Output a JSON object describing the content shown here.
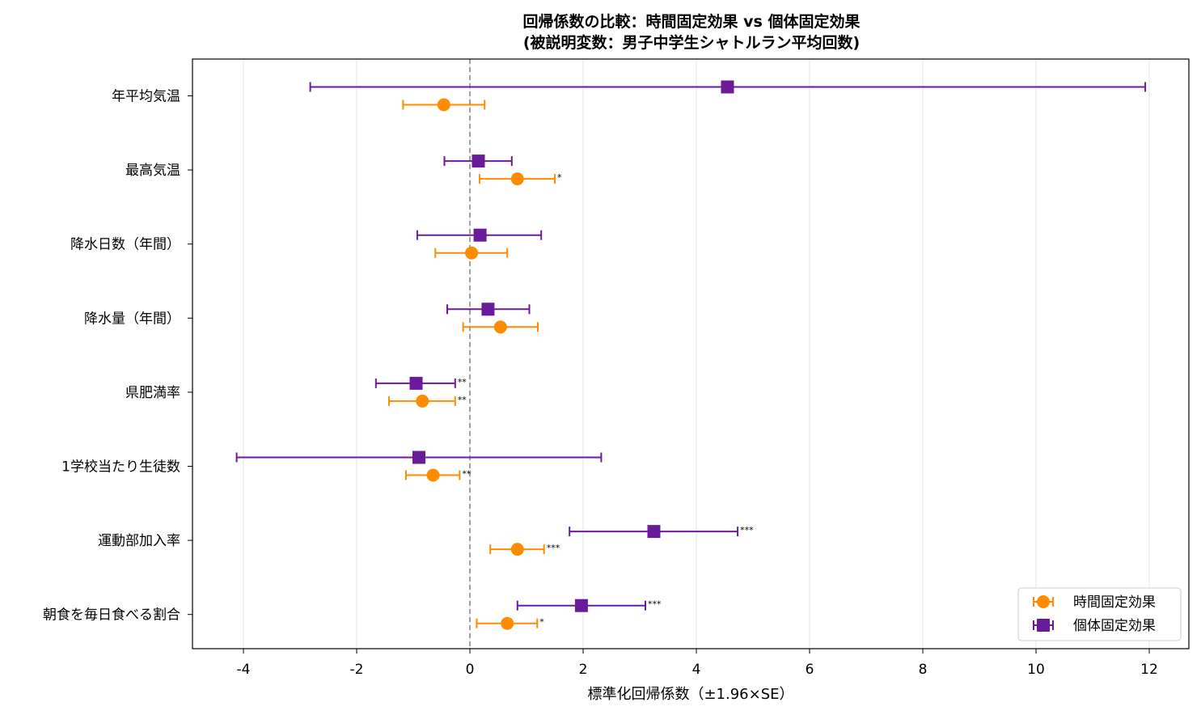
{
  "chart_data": {
    "type": "forest-errorbar",
    "title": "回帰係数の比較：時間固定効果 vs 個体固定効果",
    "subtitle": "(被説明変数：男子中学生シャトルラン平均回数)",
    "xlabel": "標準化回帰係数（±1.96×SE）",
    "xlim": [
      -4.9,
      12.7
    ],
    "xticks": [
      -4,
      -2,
      0,
      2,
      4,
      6,
      8,
      10,
      12
    ],
    "xtick_labels": [
      "-4",
      "-2",
      "0",
      "2",
      "4",
      "6",
      "8",
      "10",
      "12"
    ],
    "grid": "vertical",
    "reference_line": 0,
    "legend_position": "bottom-right",
    "categories": [
      "年平均気温",
      "最高気温",
      "降水日数（年間）",
      "降水量（年間）",
      "県肥満率",
      "1学校当たり生徒数",
      "運動部加入率",
      "朝食を毎日食べる割合"
    ],
    "series": [
      {
        "name": "個体固定効果",
        "marker": "square",
        "color": "#6a1b9a",
        "estimates": [
          4.55,
          0.15,
          0.18,
          0.32,
          -0.95,
          -0.9,
          3.25,
          1.97
        ],
        "lower": [
          -2.82,
          -0.45,
          -0.93,
          -0.4,
          -1.66,
          -4.12,
          1.76,
          0.84
        ],
        "upper": [
          11.93,
          0.74,
          1.26,
          1.05,
          -0.26,
          2.32,
          4.73,
          3.1
        ],
        "significance": [
          "",
          "",
          "",
          "",
          "**",
          "",
          "***",
          "***"
        ]
      },
      {
        "name": "時間固定効果",
        "marker": "circle",
        "color": "#ff8c00",
        "estimates": [
          -0.46,
          0.84,
          0.03,
          0.54,
          -0.84,
          -0.65,
          0.84,
          0.66
        ],
        "lower": [
          -1.18,
          0.17,
          -0.61,
          -0.12,
          -1.43,
          -1.13,
          0.36,
          0.12
        ],
        "upper": [
          0.26,
          1.5,
          0.66,
          1.2,
          -0.26,
          -0.18,
          1.31,
          1.19
        ],
        "significance": [
          "",
          "*",
          "",
          "",
          "**",
          "**",
          "***",
          "*"
        ]
      }
    ]
  }
}
